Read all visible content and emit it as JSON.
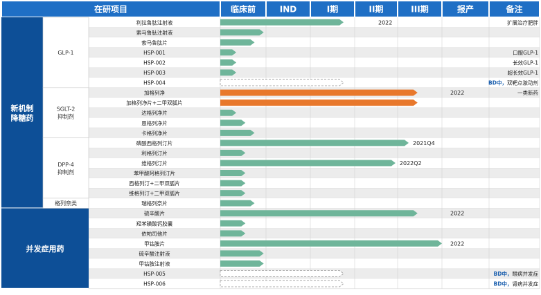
{
  "chart_data": {
    "type": "bar",
    "headers": [
      "在研项目",
      "临床前",
      "IND",
      "I期",
      "II期",
      "III期",
      "报产",
      "备注"
    ],
    "stages": [
      "临床前",
      "IND",
      "I期",
      "II期",
      "III期",
      "报产"
    ],
    "groups": [
      {
        "label": "新机制\n降糖药",
        "color": "#0d4f97"
      },
      {
        "label": "并发症用药",
        "color": "#0d4f97"
      }
    ],
    "subgroups": [
      {
        "label": "GLP-1"
      },
      {
        "label": "SGLT-2\n抑制剂"
      },
      {
        "label": "DPP-4\n抑制剂"
      },
      {
        "label": "格列奈类"
      }
    ],
    "rows": [
      {
        "name": "利拉鲁肽注射液",
        "progress": 2.75,
        "style": "green",
        "date": "2022",
        "note": "扩展治疗肥胖"
      },
      {
        "name": "索马鲁肽注射液",
        "progress": 0.95,
        "style": "green",
        "date": "",
        "note": ""
      },
      {
        "name": "索马鲁肽片",
        "progress": 0.75,
        "style": "green",
        "date": "",
        "note": ""
      },
      {
        "name": "HSP-001",
        "progress": 0.35,
        "style": "green",
        "date": "",
        "note": "口服GLP-1"
      },
      {
        "name": "HSP-002",
        "progress": 0.35,
        "style": "green",
        "date": "",
        "note": "长效GLP-1"
      },
      {
        "name": "HSP-003",
        "progress": 0.35,
        "style": "green",
        "date": "",
        "note": "超长效GLP-1"
      },
      {
        "name": "HSP-004",
        "progress": 2.75,
        "style": "dashed",
        "date": "",
        "note_bold": "BD中，",
        "note": "双靶点激动剂"
      },
      {
        "name": "加格列净",
        "progress": 4.45,
        "style": "orange",
        "date": "2022",
        "note": "一类新药"
      },
      {
        "name": "加格列净片+二甲双胍片",
        "progress": 4.45,
        "style": "orange",
        "date": "",
        "note": ""
      },
      {
        "name": "达格列净片",
        "progress": 0.35,
        "style": "green",
        "date": "",
        "note": ""
      },
      {
        "name": "恩格列净片",
        "progress": 0.55,
        "style": "green",
        "date": "",
        "note": ""
      },
      {
        "name": "卡格列净片",
        "progress": 0.75,
        "style": "green",
        "date": "",
        "note": ""
      },
      {
        "name": "磷酸西格列汀片",
        "progress": 4.25,
        "style": "green",
        "date": "2021Q4",
        "note": ""
      },
      {
        "name": "利格列汀片",
        "progress": 0.55,
        "style": "green",
        "date": "",
        "note": ""
      },
      {
        "name": "维格列汀片",
        "progress": 3.95,
        "style": "green",
        "date": "2022Q2",
        "note": ""
      },
      {
        "name": "苯甲酸阿格列汀片",
        "progress": 0.55,
        "style": "green",
        "date": "",
        "note": ""
      },
      {
        "name": "西格列汀+二甲双胍片",
        "progress": 0.55,
        "style": "green",
        "date": "",
        "note": ""
      },
      {
        "name": "维格列汀+二甲双胍片",
        "progress": 0.55,
        "style": "green",
        "date": "",
        "note": ""
      },
      {
        "name": "瑞格列奈片",
        "progress": 0.75,
        "style": "green",
        "date": "",
        "note": ""
      },
      {
        "name": "硫辛酸片",
        "progress": 4.45,
        "style": "green",
        "date": "2022",
        "note": ""
      },
      {
        "name": "羟苯磺酸钙胶囊",
        "progress": 0.55,
        "style": "green",
        "date": "",
        "note": ""
      },
      {
        "name": "依帕司他片",
        "progress": 0.55,
        "style": "green",
        "date": "",
        "note": ""
      },
      {
        "name": "甲钴胺片",
        "progress": 5.0,
        "style": "green",
        "date": "2022",
        "note": ""
      },
      {
        "name": "硫辛酸注射液",
        "progress": 0.95,
        "style": "green",
        "date": "",
        "note": ""
      },
      {
        "name": "甲钴胺注射液",
        "progress": 0.95,
        "style": "green",
        "date": "",
        "note": ""
      },
      {
        "name": "HSP-005",
        "progress": 2.75,
        "style": "dashed",
        "date": "",
        "note_bold": "BD中，",
        "note": "眼病并发症"
      },
      {
        "name": "HSP-006",
        "progress": 2.75,
        "style": "dashed",
        "date": "",
        "note_bold": "BD中，",
        "note": "肾病并发症"
      }
    ],
    "colors": {
      "header_bg": "#1f6fc5",
      "group_bg": "#0d4f97",
      "bar_green": "#6fb59a",
      "bar_orange": "#e8782c",
      "row_alt": "#ececec",
      "bd_blue": "#1b5fae"
    },
    "xlabel": "",
    "ylabel": ""
  }
}
